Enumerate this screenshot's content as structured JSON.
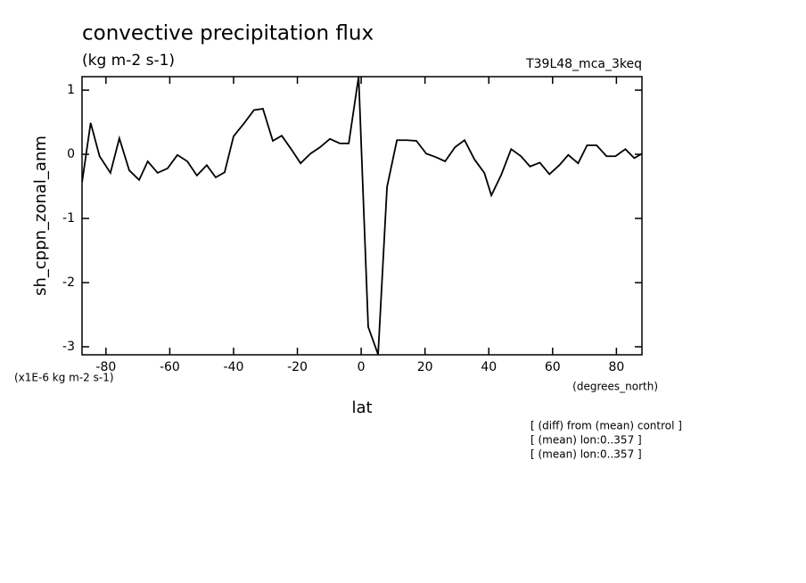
{
  "chart_data": {
    "type": "line",
    "title": "convective precipitation flux",
    "units": "(kg m-2 s-1)",
    "experiment": "T39L48_mca_3keq",
    "y_label": "sh_cppn_zonal_anm",
    "y_scale_note": "(x1E-6 kg m-2 s-1)",
    "x_units": "(degrees_north)",
    "x_label": "lat",
    "notes": [
      "[ (diff) from (mean) control ]",
      "[ (mean) lon:0..357 ]",
      "[ (mean) lon:0..357 ]"
    ],
    "color": "#000000",
    "x": [
      -87.5,
      -84.8,
      -82,
      -78.6,
      -75.8,
      -72.7,
      -69.6,
      -66.9,
      -63.8,
      -60.7,
      -57.6,
      -54.5,
      -51.5,
      -48.4,
      -45.6,
      -42.8,
      -40,
      -36.6,
      -33.6,
      -30.8,
      -27.7,
      -24.9,
      -21.8,
      -19,
      -15.9,
      -12.9,
      -9.8,
      -6.7,
      -3.9,
      -0.8,
      2.2,
      5.3,
      8.1,
      11.2,
      14.3,
      17.3,
      20.4,
      23.2,
      26.3,
      29.4,
      32.4,
      35.5,
      38.6,
      40.8,
      43.9,
      47,
      50.1,
      52.9,
      56,
      59,
      62.1,
      64.9,
      68,
      70.8,
      73.8,
      76.9,
      79.7,
      82.8,
      85.6,
      88
    ],
    "values": [
      -0.44,
      0.49,
      -0.03,
      -0.29,
      0.25,
      -0.25,
      -0.4,
      -0.11,
      -0.29,
      -0.22,
      -0.01,
      -0.11,
      -0.33,
      -0.17,
      -0.36,
      -0.28,
      0.28,
      0.49,
      0.69,
      0.71,
      0.21,
      0.29,
      0.07,
      -0.14,
      0.01,
      0.11,
      0.24,
      0.17,
      0.17,
      1.21,
      -2.69,
      -3.12,
      -0.51,
      0.22,
      0.22,
      0.21,
      0.01,
      -0.04,
      -0.11,
      0.11,
      0.22,
      -0.08,
      -0.29,
      -0.64,
      -0.32,
      0.08,
      -0.03,
      -0.19,
      -0.13,
      -0.31,
      -0.17,
      -0.01,
      -0.14,
      0.14,
      0.14,
      -0.03,
      -0.03,
      0.08,
      -0.06,
      0.01
    ],
    "xlim": [
      -87.5,
      88
    ],
    "xticks": [
      -80,
      -60,
      -40,
      -20,
      0,
      20,
      40,
      60,
      80
    ],
    "ylim": [
      -3.125,
      1.21
    ],
    "yticks": [
      -3,
      -2,
      -1,
      0,
      1
    ]
  }
}
